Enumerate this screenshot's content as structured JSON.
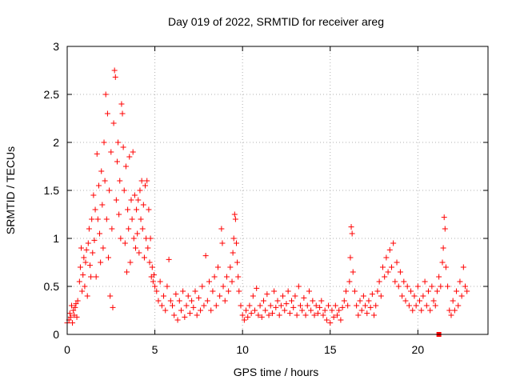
{
  "chart_data": {
    "type": "scatter",
    "title": "Day 019 of 2022, SRMTID for receiver areg",
    "xlabel": "GPS time / hours",
    "ylabel": "SRMTID / TECUs",
    "xlim": [
      0,
      24
    ],
    "ylim": [
      0,
      3
    ],
    "xticks": [
      0,
      5,
      10,
      15,
      20
    ],
    "xtick_labels": [
      "0",
      "5",
      "10",
      "15",
      "20"
    ],
    "yticks": [
      0,
      0.5,
      1,
      1.5,
      2,
      2.5,
      3
    ],
    "ytick_labels": [
      "0",
      "0.5",
      "1",
      "1.5",
      "2",
      "2.5",
      "3"
    ],
    "grid": true,
    "marker": "+",
    "color": "#ff0000",
    "series": [
      {
        "name": "SRMTID",
        "points": [
          [
            0.0,
            0.12
          ],
          [
            0.1,
            0.15
          ],
          [
            0.15,
            0.22
          ],
          [
            0.2,
            0.18
          ],
          [
            0.25,
            0.3
          ],
          [
            0.3,
            0.12
          ],
          [
            0.35,
            0.25
          ],
          [
            0.4,
            0.2
          ],
          [
            0.45,
            0.28
          ],
          [
            0.5,
            0.32
          ],
          [
            0.55,
            0.18
          ],
          [
            0.6,
            0.35
          ],
          [
            0.7,
            0.55
          ],
          [
            0.75,
            0.7
          ],
          [
            0.8,
            0.9
          ],
          [
            0.85,
            0.45
          ],
          [
            0.9,
            0.62
          ],
          [
            0.95,
            0.8
          ],
          [
            1.0,
            0.5
          ],
          [
            1.05,
            0.75
          ],
          [
            1.1,
            0.88
          ],
          [
            1.15,
            0.4
          ],
          [
            1.2,
            0.95
          ],
          [
            1.25,
            1.1
          ],
          [
            1.3,
            0.72
          ],
          [
            1.35,
            0.6
          ],
          [
            1.4,
            1.2
          ],
          [
            1.45,
            0.85
          ],
          [
            1.5,
            1.45
          ],
          [
            1.55,
            0.98
          ],
          [
            1.6,
            1.3
          ],
          [
            1.65,
            0.6
          ],
          [
            1.7,
            1.88
          ],
          [
            1.75,
            1.2
          ],
          [
            1.8,
            1.55
          ],
          [
            1.85,
            1.05
          ],
          [
            1.9,
            0.75
          ],
          [
            1.95,
            1.7
          ],
          [
            2.0,
            1.35
          ],
          [
            2.05,
            0.9
          ],
          [
            2.1,
            2.0
          ],
          [
            2.15,
            1.6
          ],
          [
            2.2,
            2.5
          ],
          [
            2.25,
            1.2
          ],
          [
            2.3,
            2.3
          ],
          [
            2.35,
            0.8
          ],
          [
            2.4,
            1.5
          ],
          [
            2.45,
            0.4
          ],
          [
            2.5,
            1.9
          ],
          [
            2.55,
            1.1
          ],
          [
            2.6,
            0.28
          ],
          [
            2.65,
            2.2
          ],
          [
            2.7,
            2.75
          ],
          [
            2.75,
            2.68
          ],
          [
            2.8,
            1.4
          ],
          [
            2.85,
            1.8
          ],
          [
            2.9,
            2.0
          ],
          [
            2.95,
            1.25
          ],
          [
            3.0,
            1.6
          ],
          [
            3.05,
            1.0
          ],
          [
            3.1,
            2.4
          ],
          [
            3.15,
            2.3
          ],
          [
            3.2,
            1.95
          ],
          [
            3.25,
            1.5
          ],
          [
            3.3,
            0.95
          ],
          [
            3.35,
            1.75
          ],
          [
            3.4,
            0.65
          ],
          [
            3.45,
            1.3
          ],
          [
            3.5,
            1.1
          ],
          [
            3.55,
            1.85
          ],
          [
            3.6,
            0.75
          ],
          [
            3.65,
            1.4
          ],
          [
            3.7,
            1.2
          ],
          [
            3.75,
            1.9
          ],
          [
            3.8,
            1.0
          ],
          [
            3.85,
            1.45
          ],
          [
            3.9,
            0.9
          ],
          [
            3.95,
            1.3
          ],
          [
            4.0,
            1.05
          ],
          [
            4.05,
            1.4
          ],
          [
            4.1,
            0.85
          ],
          [
            4.15,
            1.5
          ],
          [
            4.2,
            1.2
          ],
          [
            4.25,
            1.6
          ],
          [
            4.3,
            1.1
          ],
          [
            4.35,
            1.35
          ],
          [
            4.4,
            0.8
          ],
          [
            4.45,
            1.55
          ],
          [
            4.5,
            1.0
          ],
          [
            4.55,
            1.6
          ],
          [
            4.6,
            0.9
          ],
          [
            4.65,
            1.3
          ],
          [
            4.7,
            0.75
          ],
          [
            4.75,
            1.0
          ],
          [
            4.8,
            0.6
          ],
          [
            4.85,
            0.7
          ],
          [
            4.9,
            0.55
          ],
          [
            4.95,
            0.62
          ],
          [
            5.0,
            0.5
          ],
          [
            5.1,
            0.45
          ],
          [
            5.2,
            0.35
          ],
          [
            5.3,
            0.55
          ],
          [
            5.4,
            0.3
          ],
          [
            5.5,
            0.4
          ],
          [
            5.6,
            0.25
          ],
          [
            5.7,
            0.5
          ],
          [
            5.8,
            0.78
          ],
          [
            5.9,
            0.35
          ],
          [
            6.0,
            0.3
          ],
          [
            6.1,
            0.2
          ],
          [
            6.2,
            0.42
          ],
          [
            6.3,
            0.15
          ],
          [
            6.4,
            0.35
          ],
          [
            6.5,
            0.25
          ],
          [
            6.6,
            0.45
          ],
          [
            6.7,
            0.18
          ],
          [
            6.8,
            0.3
          ],
          [
            6.9,
            0.4
          ],
          [
            7.0,
            0.22
          ],
          [
            7.1,
            0.35
          ],
          [
            7.2,
            0.28
          ],
          [
            7.3,
            0.45
          ],
          [
            7.4,
            0.2
          ],
          [
            7.5,
            0.38
          ],
          [
            7.6,
            0.25
          ],
          [
            7.7,
            0.5
          ],
          [
            7.8,
            0.3
          ],
          [
            7.9,
            0.82
          ],
          [
            8.0,
            0.35
          ],
          [
            8.1,
            0.55
          ],
          [
            8.2,
            0.25
          ],
          [
            8.3,
            0.45
          ],
          [
            8.4,
            0.6
          ],
          [
            8.5,
            0.3
          ],
          [
            8.6,
            0.7
          ],
          [
            8.7,
            0.4
          ],
          [
            8.8,
            1.1
          ],
          [
            8.85,
            0.95
          ],
          [
            8.9,
            0.5
          ],
          [
            9.0,
            0.35
          ],
          [
            9.1,
            0.6
          ],
          [
            9.2,
            0.45
          ],
          [
            9.3,
            0.7
          ],
          [
            9.4,
            0.55
          ],
          [
            9.45,
            0.85
          ],
          [
            9.5,
            1.0
          ],
          [
            9.55,
            1.25
          ],
          [
            9.6,
            1.2
          ],
          [
            9.65,
            0.95
          ],
          [
            9.7,
            0.75
          ],
          [
            9.75,
            0.6
          ],
          [
            9.8,
            0.45
          ],
          [
            9.9,
            0.3
          ],
          [
            10.0,
            0.2
          ],
          [
            10.1,
            0.15
          ],
          [
            10.2,
            0.25
          ],
          [
            10.3,
            0.18
          ],
          [
            10.4,
            0.3
          ],
          [
            10.5,
            0.22
          ],
          [
            10.6,
            0.4
          ],
          [
            10.7,
            0.25
          ],
          [
            10.8,
            0.48
          ],
          [
            10.9,
            0.2
          ],
          [
            11.0,
            0.3
          ],
          [
            11.1,
            0.18
          ],
          [
            11.2,
            0.35
          ],
          [
            11.3,
            0.25
          ],
          [
            11.4,
            0.42
          ],
          [
            11.5,
            0.2
          ],
          [
            11.6,
            0.3
          ],
          [
            11.7,
            0.22
          ],
          [
            11.8,
            0.45
          ],
          [
            11.9,
            0.28
          ],
          [
            12.0,
            0.35
          ],
          [
            12.1,
            0.2
          ],
          [
            12.2,
            0.3
          ],
          [
            12.3,
            0.4
          ],
          [
            12.4,
            0.25
          ],
          [
            12.5,
            0.32
          ],
          [
            12.6,
            0.45
          ],
          [
            12.7,
            0.22
          ],
          [
            12.8,
            0.35
          ],
          [
            12.9,
            0.28
          ],
          [
            13.0,
            0.4
          ],
          [
            13.1,
            0.2
          ],
          [
            13.2,
            0.5
          ],
          [
            13.3,
            0.3
          ],
          [
            13.4,
            0.25
          ],
          [
            13.5,
            0.38
          ],
          [
            13.6,
            0.2
          ],
          [
            13.7,
            0.3
          ],
          [
            13.8,
            0.45
          ],
          [
            13.9,
            0.25
          ],
          [
            14.0,
            0.35
          ],
          [
            14.1,
            0.2
          ],
          [
            14.2,
            0.3
          ],
          [
            14.3,
            0.22
          ],
          [
            14.4,
            0.28
          ],
          [
            14.5,
            0.35
          ],
          [
            14.6,
            0.2
          ],
          [
            14.7,
            0.25
          ],
          [
            14.8,
            0.15
          ],
          [
            14.9,
            0.3
          ],
          [
            15.0,
            0.12
          ],
          [
            15.1,
            0.25
          ],
          [
            15.2,
            0.18
          ],
          [
            15.3,
            0.3
          ],
          [
            15.4,
            0.2
          ],
          [
            15.5,
            0.25
          ],
          [
            15.6,
            0.15
          ],
          [
            15.7,
            0.28
          ],
          [
            15.8,
            0.35
          ],
          [
            15.9,
            0.45
          ],
          [
            16.0,
            0.3
          ],
          [
            16.1,
            0.55
          ],
          [
            16.15,
            0.8
          ],
          [
            16.2,
            1.12
          ],
          [
            16.25,
            1.05
          ],
          [
            16.3,
            0.65
          ],
          [
            16.4,
            0.45
          ],
          [
            16.5,
            0.3
          ],
          [
            16.6,
            0.2
          ],
          [
            16.7,
            0.35
          ],
          [
            16.8,
            0.25
          ],
          [
            16.9,
            0.4
          ],
          [
            17.0,
            0.3
          ],
          [
            17.1,
            0.22
          ],
          [
            17.2,
            0.35
          ],
          [
            17.3,
            0.28
          ],
          [
            17.4,
            0.42
          ],
          [
            17.5,
            0.2
          ],
          [
            17.6,
            0.3
          ],
          [
            17.7,
            0.45
          ],
          [
            17.8,
            0.55
          ],
          [
            17.9,
            0.4
          ],
          [
            18.0,
            0.7
          ],
          [
            18.1,
            0.6
          ],
          [
            18.2,
            0.8
          ],
          [
            18.3,
            0.65
          ],
          [
            18.4,
            0.88
          ],
          [
            18.5,
            0.7
          ],
          [
            18.6,
            0.95
          ],
          [
            18.7,
            0.55
          ],
          [
            18.8,
            0.75
          ],
          [
            18.9,
            0.5
          ],
          [
            19.0,
            0.65
          ],
          [
            19.1,
            0.4
          ],
          [
            19.2,
            0.55
          ],
          [
            19.3,
            0.35
          ],
          [
            19.4,
            0.5
          ],
          [
            19.5,
            0.3
          ],
          [
            19.6,
            0.45
          ],
          [
            19.7,
            0.25
          ],
          [
            19.8,
            0.4
          ],
          [
            19.9,
            0.3
          ],
          [
            20.0,
            0.5
          ],
          [
            20.1,
            0.35
          ],
          [
            20.2,
            0.25
          ],
          [
            20.3,
            0.4
          ],
          [
            20.4,
            0.55
          ],
          [
            20.5,
            0.3
          ],
          [
            20.6,
            0.45
          ],
          [
            20.7,
            0.25
          ],
          [
            20.8,
            0.5
          ],
          [
            20.9,
            0.35
          ],
          [
            21.0,
            0.3
          ],
          [
            21.1,
            0.45
          ],
          [
            21.2,
            0.6
          ],
          [
            21.3,
            0.5
          ],
          [
            21.4,
            0.75
          ],
          [
            21.45,
            0.9
          ],
          [
            21.5,
            1.22
          ],
          [
            21.55,
            1.1
          ],
          [
            21.6,
            0.7
          ],
          [
            21.7,
            0.5
          ],
          [
            21.8,
            0.25
          ],
          [
            21.9,
            0.2
          ],
          [
            22.0,
            0.35
          ],
          [
            22.1,
            0.25
          ],
          [
            22.2,
            0.45
          ],
          [
            22.3,
            0.3
          ],
          [
            22.4,
            0.55
          ],
          [
            22.5,
            0.4
          ],
          [
            22.6,
            0.7
          ],
          [
            22.7,
            0.5
          ],
          [
            22.8,
            0.45
          ]
        ]
      }
    ],
    "outlier_marker": {
      "x": 21.2,
      "y": 0.0
    }
  }
}
